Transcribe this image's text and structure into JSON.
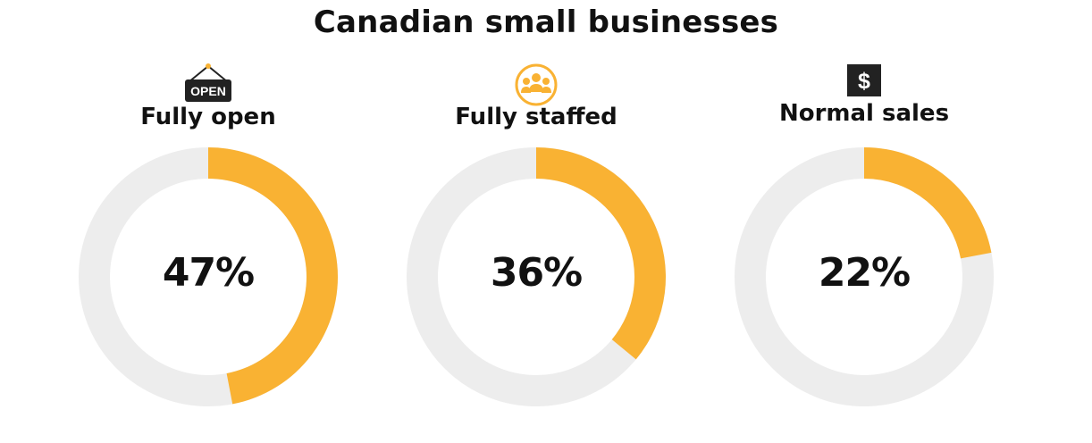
{
  "chart_data": {
    "type": "donut",
    "title": "Canadian small businesses",
    "accent_color": "#F9B233",
    "track_color": "#EDEDED",
    "categories": [
      "Fully open",
      "Fully staffed",
      "Normal sales"
    ],
    "values": [
      47,
      36,
      22
    ],
    "value_labels": [
      "47%",
      "36%",
      "22%"
    ],
    "unit": "%",
    "icons": [
      "open-sign-icon",
      "people-icon",
      "dollar-icon"
    ],
    "open_sign_text": "OPEN",
    "dollar_symbol": "$"
  }
}
